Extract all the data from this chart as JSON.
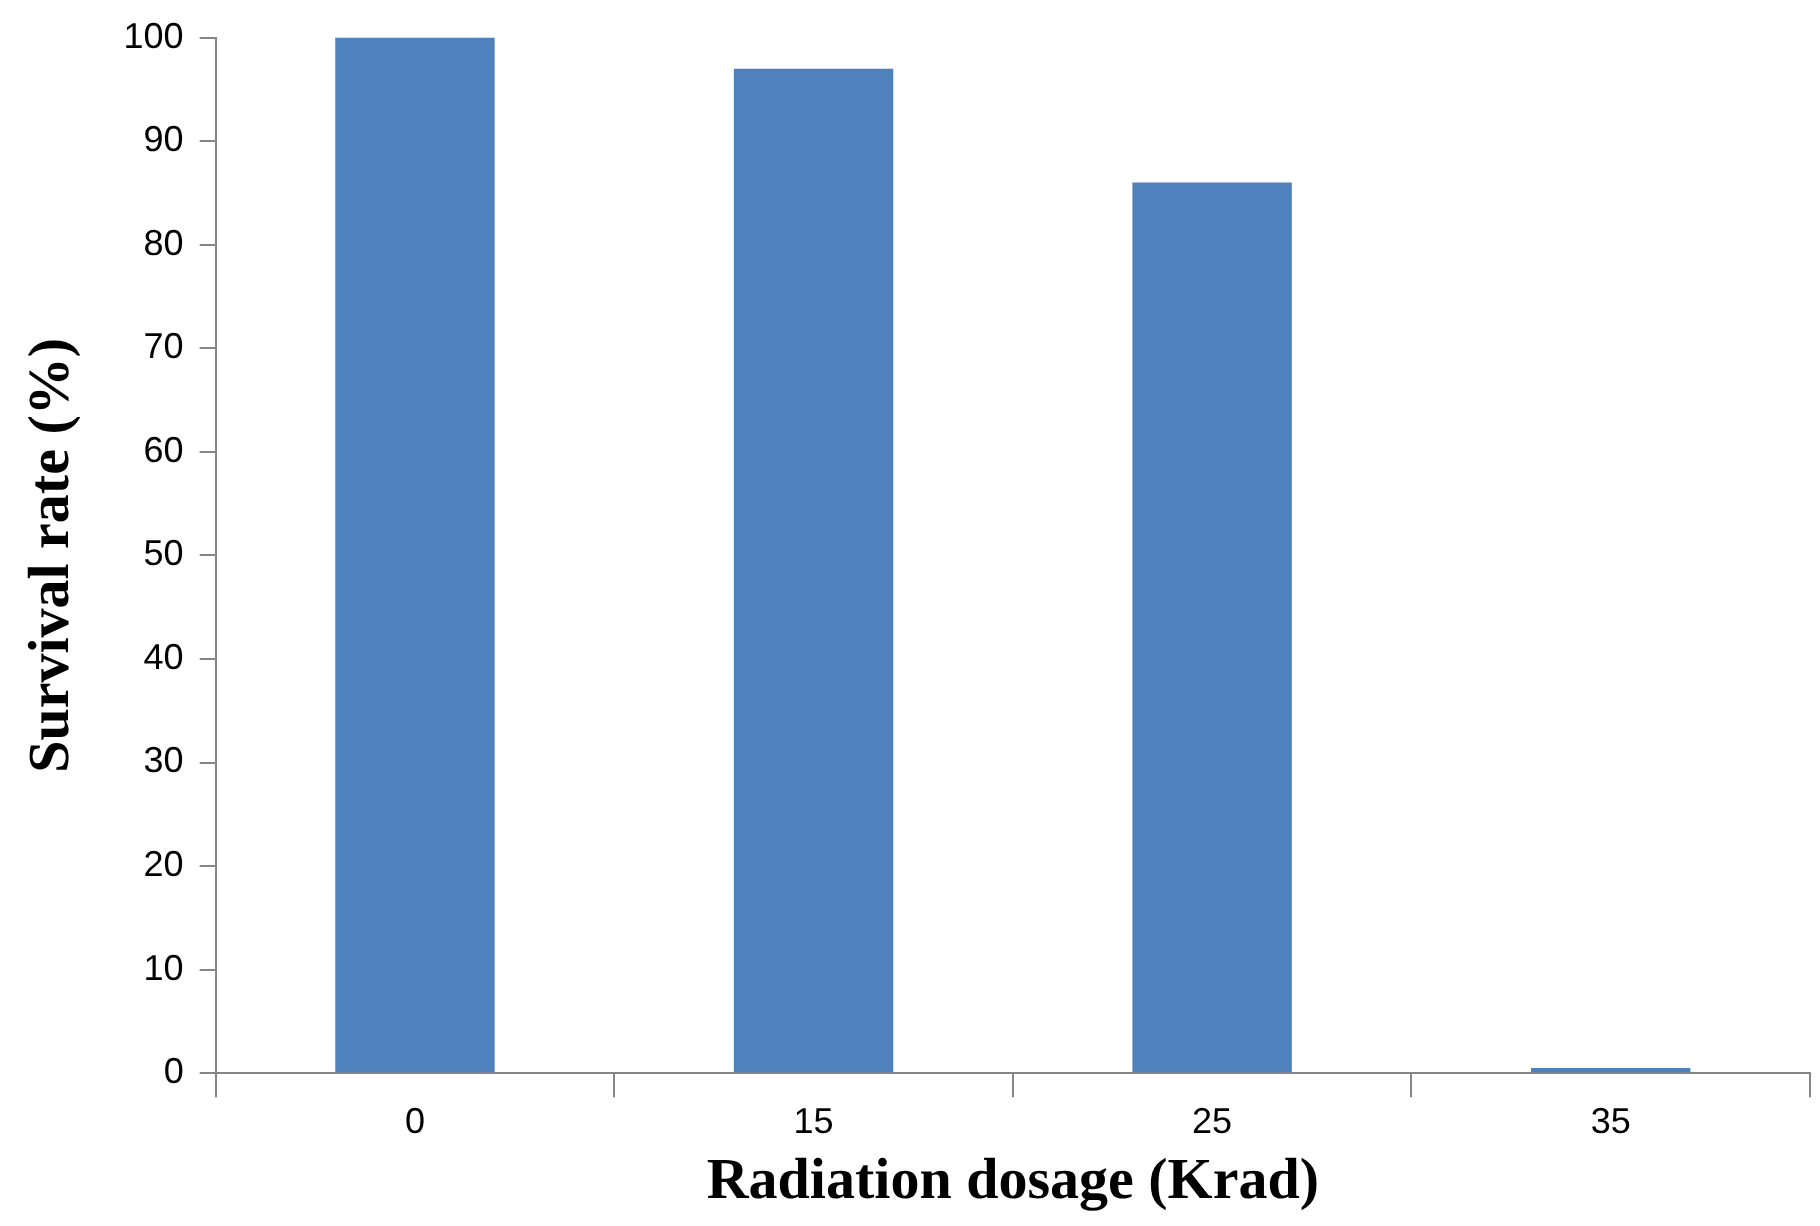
{
  "chart_data": {
    "type": "bar",
    "xlabel": "Radiation dosage (Krad)",
    "ylabel": "Survival rate (%)",
    "categories": [
      "0",
      "15",
      "25",
      "35"
    ],
    "values": [
      100,
      97,
      86,
      0.5
    ],
    "color": "#4f81bd",
    "ylim": [
      0,
      100
    ],
    "yticks": [
      0,
      10,
      20,
      30,
      40,
      50,
      60,
      70,
      80,
      90,
      100
    ],
    "grid": false,
    "legend": false
  }
}
